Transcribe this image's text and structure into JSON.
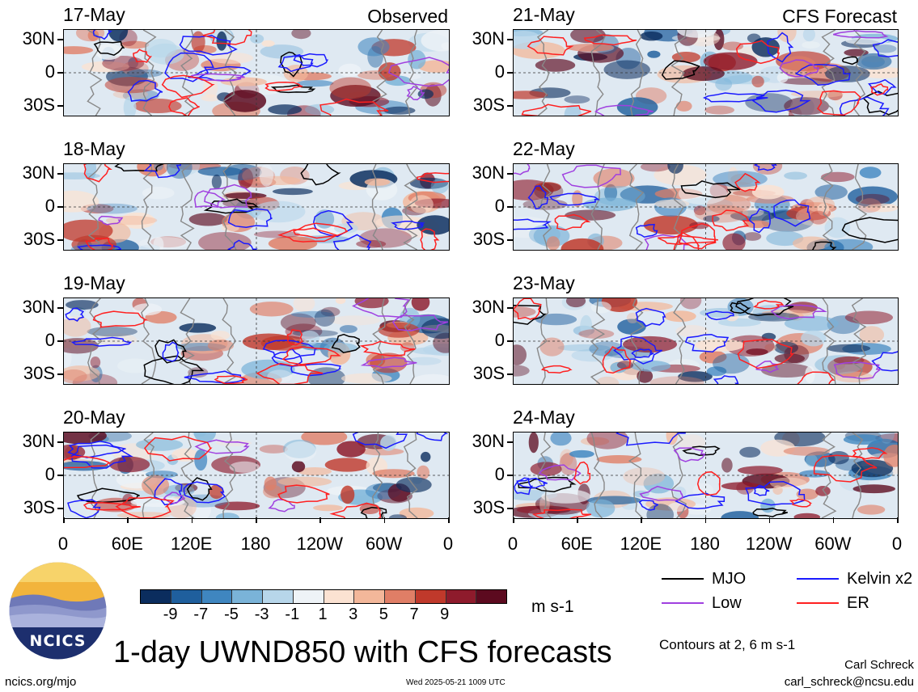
{
  "chart_data": {
    "type": "heatmap",
    "title": "1-day UWND850 with CFS forecasts",
    "unit": "m s-1",
    "observed_label": "Observed",
    "forecast_label": "CFS Forecast",
    "panels": [
      {
        "date": "17-May",
        "group": "observed",
        "header": "Observed"
      },
      {
        "date": "18-May",
        "group": "observed",
        "header": ""
      },
      {
        "date": "19-May",
        "group": "observed",
        "header": ""
      },
      {
        "date": "20-May",
        "group": "observed",
        "header": ""
      },
      {
        "date": "21-May",
        "group": "forecast",
        "header": "CFS Forecast"
      },
      {
        "date": "22-May",
        "group": "forecast",
        "header": ""
      },
      {
        "date": "23-May",
        "group": "forecast",
        "header": ""
      },
      {
        "date": "24-May",
        "group": "forecast",
        "header": ""
      }
    ],
    "lat_ticks": [
      "30N",
      "0",
      "30S"
    ],
    "lon_ticks": [
      "0",
      "60E",
      "120E",
      "180",
      "120W",
      "60W",
      "0"
    ],
    "colorbar": {
      "labels": [
        "-9",
        "-7",
        "-5",
        "-3",
        "-1",
        "1",
        "3",
        "5",
        "7",
        "9"
      ],
      "colors": [
        "#0b2d5e",
        "#1f5f9d",
        "#3f86c0",
        "#7ab3d8",
        "#b7d6ea",
        "#eef3f7",
        "#fbe2d2",
        "#f3b79a",
        "#e07e66",
        "#c0392b",
        "#8e1b2c",
        "#5c0a1f"
      ]
    },
    "legend": [
      {
        "label": "MJO",
        "color": "#000000"
      },
      {
        "label": "Kelvin x2",
        "color": "#1a1aff"
      },
      {
        "label": "Low",
        "color": "#a040e0"
      },
      {
        "label": "ER",
        "color": "#ff2020"
      }
    ],
    "contour_note": "Contours at 2, 6 m s-1"
  },
  "footer": {
    "site": "ncics.org/mjo",
    "timestamp": "Wed 2025-05-21 1009 UTC",
    "author": "Carl Schreck",
    "email": "carl_schreck@ncsu.edu"
  },
  "logo": {
    "text": "NCICS"
  }
}
